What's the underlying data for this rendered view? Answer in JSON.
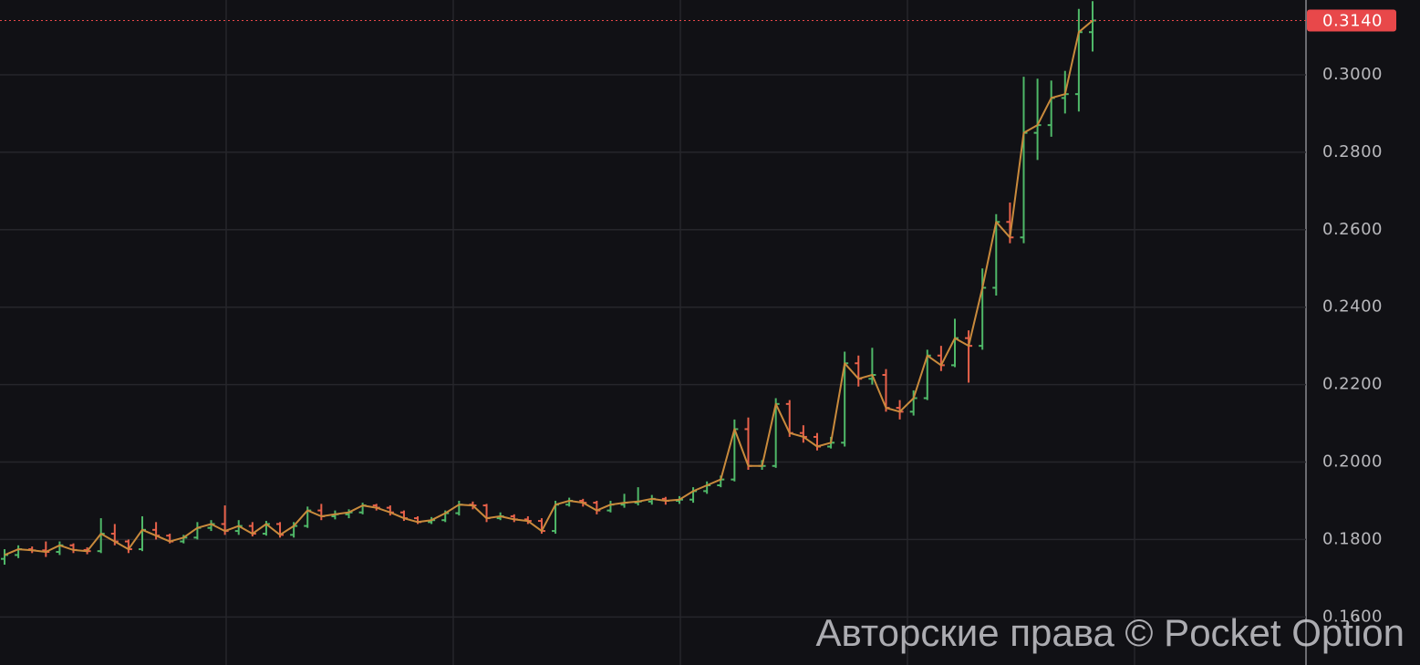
{
  "chart_data": {
    "type": "ohlc",
    "up_color": "#4fb868",
    "down_color": "#e8614a",
    "line_color": "#c98a3c",
    "ylim": [
      0.1476,
      0.3193
    ],
    "yticks": [
      {
        "value": 0.16,
        "label": "0.1600"
      },
      {
        "value": 0.18,
        "label": "0.1800"
      },
      {
        "value": 0.2,
        "label": "0.2000"
      },
      {
        "value": 0.22,
        "label": "0.2200"
      },
      {
        "value": 0.24,
        "label": "0.2400"
      },
      {
        "value": 0.26,
        "label": "0.2600"
      },
      {
        "value": 0.28,
        "label": "0.2800"
      },
      {
        "value": 0.3,
        "label": "0.3000"
      }
    ],
    "grid": true,
    "last_price": {
      "value": 0.314,
      "label": "0.3140",
      "color": "#e8484a"
    },
    "watermark": "Авторские права © Pocket Option",
    "open": [
      0.175,
      0.176,
      0.1775,
      0.1772,
      0.1768,
      0.1785,
      0.1773,
      0.177,
      0.1815,
      0.1795,
      0.1775,
      0.1825,
      0.181,
      0.1795,
      0.1805,
      0.183,
      0.184,
      0.1822,
      0.1835,
      0.1815,
      0.184,
      0.1812,
      0.1835,
      0.1875,
      0.186,
      0.1865,
      0.187,
      0.1888,
      0.1882,
      0.187,
      0.1855,
      0.1845,
      0.185,
      0.1868,
      0.189,
      0.1888,
      0.1855,
      0.186,
      0.1852,
      0.1848,
      0.1822,
      0.189,
      0.19,
      0.1895,
      0.1875,
      0.189,
      0.1895,
      0.1898,
      0.1905,
      0.19,
      0.1903,
      0.1925,
      0.194,
      0.1955,
      0.2085,
      0.199,
      0.199,
      0.215,
      0.2075,
      0.2065,
      0.204,
      0.205,
      0.2255,
      0.2215,
      0.2225,
      0.214,
      0.213,
      0.2165,
      0.2275,
      0.225,
      0.232,
      0.23,
      0.245,
      0.262,
      0.258,
      0.285,
      0.287,
      0.294,
      0.295,
      0.311
    ],
    "high": [
      0.1775,
      0.1785,
      0.1782,
      0.1795,
      0.1795,
      0.179,
      0.178,
      0.1855,
      0.184,
      0.18,
      0.186,
      0.1845,
      0.1815,
      0.1812,
      0.1845,
      0.185,
      0.1888,
      0.185,
      0.1845,
      0.1848,
      0.1845,
      0.1845,
      0.1885,
      0.1892,
      0.1875,
      0.1878,
      0.1895,
      0.1892,
      0.1888,
      0.1875,
      0.186,
      0.1858,
      0.1875,
      0.19,
      0.1898,
      0.1892,
      0.187,
      0.1865,
      0.186,
      0.1855,
      0.19,
      0.1908,
      0.1905,
      0.19,
      0.19,
      0.1918,
      0.1935,
      0.1915,
      0.191,
      0.1912,
      0.1935,
      0.195,
      0.1965,
      0.211,
      0.2115,
      0.2005,
      0.2165,
      0.216,
      0.2095,
      0.2075,
      0.2065,
      0.2285,
      0.2275,
      0.2295,
      0.224,
      0.216,
      0.2185,
      0.229,
      0.23,
      0.237,
      0.234,
      0.25,
      0.264,
      0.267,
      0.2995,
      0.299,
      0.2985,
      0.301,
      0.317,
      0.319
    ],
    "low": [
      0.1735,
      0.1752,
      0.1765,
      0.1755,
      0.176,
      0.1765,
      0.1762,
      0.1765,
      0.1785,
      0.1765,
      0.177,
      0.18,
      0.179,
      0.179,
      0.18,
      0.1822,
      0.1812,
      0.1812,
      0.1808,
      0.181,
      0.1805,
      0.1805,
      0.183,
      0.185,
      0.1852,
      0.1855,
      0.1865,
      0.1875,
      0.1862,
      0.1848,
      0.184,
      0.184,
      0.1845,
      0.1862,
      0.1878,
      0.1845,
      0.185,
      0.1845,
      0.184,
      0.1815,
      0.1815,
      0.1885,
      0.1885,
      0.1865,
      0.187,
      0.1882,
      0.1888,
      0.189,
      0.189,
      0.1892,
      0.1895,
      0.1918,
      0.1935,
      0.195,
      0.198,
      0.198,
      0.1985,
      0.2065,
      0.205,
      0.203,
      0.2035,
      0.204,
      0.2195,
      0.22,
      0.213,
      0.211,
      0.212,
      0.216,
      0.2235,
      0.2245,
      0.2205,
      0.229,
      0.243,
      0.2565,
      0.2565,
      0.278,
      0.284,
      0.29,
      0.2905,
      0.306
    ],
    "close": [
      0.176,
      0.1775,
      0.1772,
      0.1768,
      0.1785,
      0.1773,
      0.177,
      0.1815,
      0.1795,
      0.1775,
      0.1825,
      0.181,
      0.1795,
      0.1805,
      0.183,
      0.184,
      0.1822,
      0.1835,
      0.1815,
      0.184,
      0.1812,
      0.1835,
      0.1875,
      0.186,
      0.1865,
      0.187,
      0.1888,
      0.1882,
      0.187,
      0.1855,
      0.1845,
      0.185,
      0.1868,
      0.189,
      0.1888,
      0.1855,
      0.186,
      0.1852,
      0.1848,
      0.1822,
      0.189,
      0.19,
      0.1895,
      0.1875,
      0.189,
      0.1895,
      0.1898,
      0.1905,
      0.19,
      0.1903,
      0.1925,
      0.194,
      0.1955,
      0.2085,
      0.199,
      0.199,
      0.215,
      0.2075,
      0.2065,
      0.204,
      0.205,
      0.2255,
      0.2215,
      0.2225,
      0.214,
      0.213,
      0.2165,
      0.2275,
      0.225,
      0.232,
      0.23,
      0.245,
      0.262,
      0.258,
      0.285,
      0.287,
      0.294,
      0.295,
      0.311,
      0.314
    ]
  }
}
